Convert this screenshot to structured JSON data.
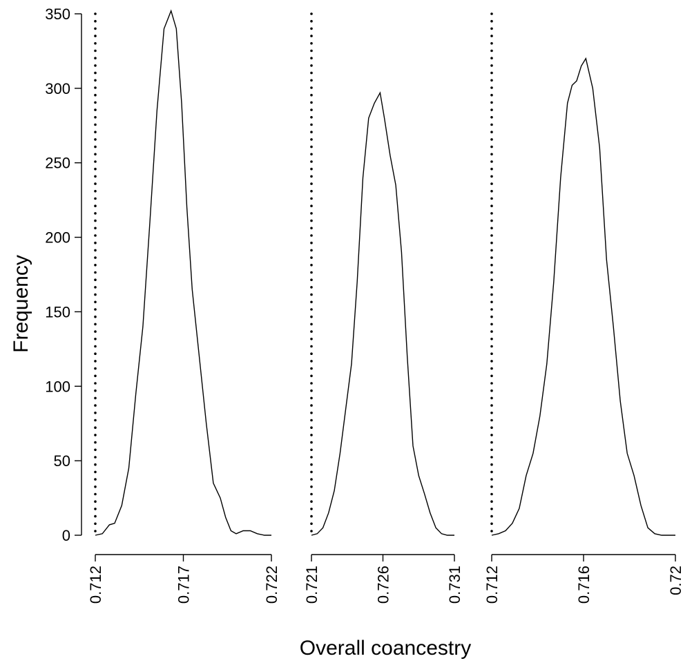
{
  "chart_data": {
    "type": "line",
    "xlabel": "Overall coancestry",
    "ylabel": "Frequency",
    "ylim": [
      0,
      350
    ],
    "y_ticks": [
      "0",
      "50",
      "100",
      "150",
      "200",
      "250",
      "300",
      "350"
    ],
    "grid": false,
    "legend": "none",
    "line_color": "#000000",
    "panels": [
      {
        "xlim": [
          0.712,
          0.722
        ],
        "x_ticks": [
          "0.712",
          "0.717",
          "0.722"
        ],
        "reference_x": 0.712,
        "series": [
          {
            "x": [
              0.712,
              0.7124,
              0.7128,
              0.7131,
              0.7135,
              0.7139,
              0.7143,
              0.7147,
              0.7151,
              0.7155,
              0.7159,
              0.7163,
              0.7166,
              0.7169,
              0.7172,
              0.7175,
              0.7179,
              0.7183,
              0.7187,
              0.7191,
              0.7194,
              0.7197,
              0.72,
              0.7204,
              0.7208,
              0.7212,
              0.7216,
              0.722
            ],
            "y": [
              0,
              1,
              7,
              8,
              20,
              45,
              95,
              140,
              210,
              285,
              340,
              352,
              340,
              290,
              220,
              165,
              120,
              75,
              35,
              25,
              12,
              3,
              1,
              3,
              3,
              1,
              0,
              0
            ]
          }
        ]
      },
      {
        "xlim": [
          0.721,
          0.731
        ],
        "x_ticks": [
          "0.721",
          "0.726",
          "0.731"
        ],
        "reference_x": 0.721,
        "series": [
          {
            "x": [
              0.721,
              0.7214,
              0.7218,
              0.7222,
              0.7226,
              0.723,
              0.7234,
              0.7238,
              0.7242,
              0.7246,
              0.725,
              0.7254,
              0.7258,
              0.7261,
              0.7265,
              0.7269,
              0.7273,
              0.7277,
              0.7281,
              0.7285,
              0.7289,
              0.7293,
              0.7297,
              0.7301,
              0.7305,
              0.731
            ],
            "y": [
              0,
              1,
              5,
              15,
              30,
              55,
              85,
              115,
              170,
              240,
              280,
              290,
              297,
              280,
              255,
              235,
              190,
              120,
              60,
              40,
              28,
              15,
              5,
              1,
              0,
              0
            ]
          }
        ]
      },
      {
        "xlim": [
          0.712,
          0.72
        ],
        "x_ticks": [
          "0.712",
          "0.716",
          "0.72"
        ],
        "reference_x": 0.712,
        "series": [
          {
            "x": [
              0.712,
              0.7123,
              0.7126,
              0.7129,
              0.7132,
              0.7135,
              0.7138,
              0.7141,
              0.7144,
              0.7147,
              0.715,
              0.7153,
              0.7155,
              0.7157,
              0.7159,
              0.7161,
              0.7164,
              0.7167,
              0.717,
              0.7173,
              0.7176,
              0.7179,
              0.7182,
              0.7185,
              0.7188,
              0.7191,
              0.7194,
              0.7197,
              0.72
            ],
            "y": [
              0,
              1,
              3,
              8,
              18,
              40,
              55,
              80,
              115,
              170,
              240,
              290,
              302,
              305,
              315,
              320,
              300,
              260,
              185,
              140,
              90,
              55,
              40,
              20,
              5,
              1,
              0,
              0,
              0
            ]
          }
        ]
      }
    ]
  }
}
